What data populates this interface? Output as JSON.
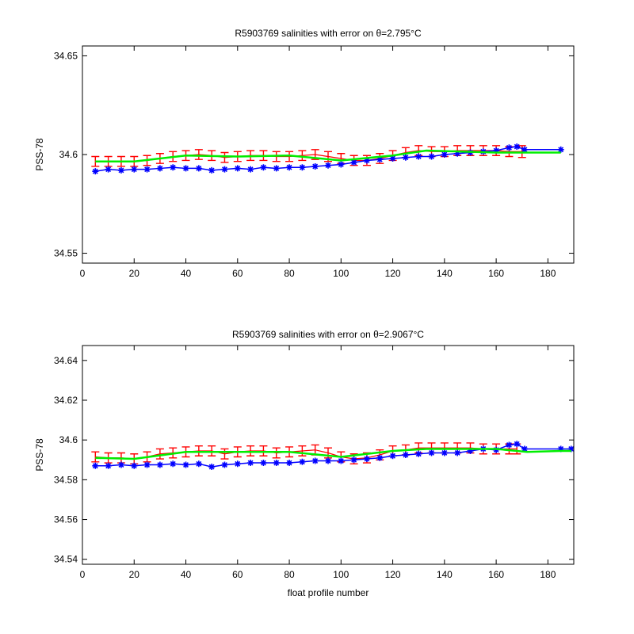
{
  "chart_data": [
    {
      "type": "line",
      "title": "R5903769 salinities with error on θ=2.795",
      "title_suffix": "°C",
      "xlabel": "",
      "ylabel": "PSS-78",
      "xlim": [
        0,
        190
      ],
      "ylim": [
        34.545,
        34.655
      ],
      "xticks": [
        0,
        20,
        40,
        60,
        80,
        100,
        120,
        140,
        160,
        180
      ],
      "yticks": [
        34.55,
        34.6,
        34.65
      ],
      "ytick_labels": [
        "34.55",
        "34.6",
        "34.65"
      ],
      "grid": false,
      "colors": {
        "mapped": "#ff0000",
        "float": "#0000ff",
        "calibrated": "#00ee00"
      },
      "series": [
        {
          "role": "mapped",
          "style": "errorbar",
          "x": [
            5,
            10,
            15,
            20,
            25,
            30,
            35,
            40,
            45,
            50,
            55,
            60,
            65,
            70,
            75,
            80,
            85,
            90,
            95,
            100,
            105,
            110,
            115,
            120,
            125,
            130,
            135,
            140,
            145,
            150,
            155,
            160,
            165,
            170
          ],
          "values": [
            34.5965,
            34.5965,
            34.5965,
            34.5965,
            34.597,
            34.598,
            34.599,
            34.5995,
            34.6,
            34.5995,
            34.5985,
            34.599,
            34.5995,
            34.5995,
            34.599,
            34.599,
            34.5995,
            34.6,
            34.599,
            34.598,
            34.597,
            34.597,
            34.598,
            34.5995,
            34.601,
            34.602,
            34.6015,
            34.6015,
            34.602,
            34.602,
            34.602,
            34.602,
            34.6015,
            34.6015
          ],
          "error": [
            0.0025,
            0.0025,
            0.0025,
            0.0025,
            0.0025,
            0.0025,
            0.0025,
            0.0025,
            0.0025,
            0.0025,
            0.0025,
            0.0025,
            0.0025,
            0.0025,
            0.0025,
            0.0025,
            0.0025,
            0.0025,
            0.0025,
            0.0025,
            0.0025,
            0.0025,
            0.0025,
            0.0025,
            0.0025,
            0.0025,
            0.0025,
            0.0025,
            0.0025,
            0.0025,
            0.0025,
            0.0025,
            0.0025,
            0.003
          ]
        },
        {
          "role": "float",
          "style": "stars",
          "x": [
            5,
            10,
            15,
            20,
            25,
            30,
            35,
            40,
            45,
            50,
            55,
            60,
            65,
            70,
            75,
            80,
            85,
            90,
            95,
            100,
            105,
            110,
            115,
            120,
            125,
            130,
            135,
            140,
            145,
            150,
            155,
            160,
            165,
            168,
            171,
            185
          ],
          "values": [
            34.5915,
            34.5925,
            34.592,
            34.5925,
            34.5925,
            34.593,
            34.5935,
            34.593,
            34.593,
            34.592,
            34.5925,
            34.593,
            34.5925,
            34.5935,
            34.593,
            34.5935,
            34.5935,
            34.594,
            34.5945,
            34.595,
            34.596,
            34.597,
            34.5975,
            34.598,
            34.5985,
            34.599,
            34.599,
            34.6,
            34.6005,
            34.601,
            34.6015,
            34.602,
            34.6035,
            34.604,
            34.6025,
            34.6025
          ]
        },
        {
          "role": "calibrated",
          "style": "line",
          "x": [
            5,
            20,
            40,
            60,
            80,
            100,
            120,
            133,
            160,
            172,
            185
          ],
          "values": [
            34.5965,
            34.5965,
            34.5995,
            34.599,
            34.5995,
            34.597,
            34.5995,
            34.602,
            34.601,
            34.601,
            34.601
          ]
        }
      ]
    },
    {
      "type": "line",
      "title": "R5903769 salinities with error on θ=2.9067",
      "title_suffix": "°C",
      "xlabel": "float profile number",
      "ylabel": "PSS-78",
      "xlim": [
        0,
        190
      ],
      "ylim": [
        34.5375,
        34.6475
      ],
      "xticks": [
        0,
        20,
        40,
        60,
        80,
        100,
        120,
        140,
        160,
        180
      ],
      "yticks": [
        34.54,
        34.56,
        34.58,
        34.6,
        34.62,
        34.64
      ],
      "ytick_labels": [
        "34.54",
        "34.56",
        "34.58",
        "34.6",
        "34.62",
        "34.64"
      ],
      "grid": false,
      "colors": {
        "mapped": "#ff0000",
        "float": "#0000ff",
        "calibrated": "#00ee00"
      },
      "series": [
        {
          "role": "mapped",
          "style": "errorbar",
          "x": [
            5,
            10,
            15,
            20,
            25,
            30,
            35,
            40,
            45,
            50,
            55,
            60,
            65,
            70,
            75,
            80,
            85,
            90,
            95,
            100,
            105,
            110,
            115,
            120,
            125,
            130,
            135,
            140,
            145,
            150,
            155,
            160,
            165,
            168
          ],
          "values": [
            34.5915,
            34.591,
            34.591,
            34.5905,
            34.5915,
            34.593,
            34.5935,
            34.594,
            34.5945,
            34.5945,
            34.593,
            34.594,
            34.5945,
            34.5945,
            34.5935,
            34.594,
            34.5945,
            34.595,
            34.5935,
            34.5915,
            34.5905,
            34.591,
            34.5925,
            34.5945,
            34.595,
            34.596,
            34.596,
            34.596,
            34.596,
            34.596,
            34.5955,
            34.5955,
            34.5955,
            34.5955
          ],
          "error": [
            0.0025,
            0.0025,
            0.0025,
            0.0025,
            0.0025,
            0.0025,
            0.0025,
            0.0025,
            0.0025,
            0.0025,
            0.0025,
            0.0025,
            0.0025,
            0.0025,
            0.0025,
            0.0025,
            0.0025,
            0.0025,
            0.0025,
            0.0025,
            0.0025,
            0.0025,
            0.0025,
            0.0025,
            0.0025,
            0.0025,
            0.0025,
            0.0025,
            0.0025,
            0.0025,
            0.0025,
            0.0025,
            0.0025,
            0.0025
          ]
        },
        {
          "role": "float",
          "style": "stars",
          "x": [
            5,
            10,
            15,
            20,
            25,
            30,
            35,
            40,
            45,
            50,
            55,
            60,
            65,
            70,
            75,
            80,
            85,
            90,
            95,
            100,
            105,
            110,
            115,
            120,
            125,
            130,
            135,
            140,
            145,
            150,
            155,
            160,
            165,
            168,
            171,
            185,
            189
          ],
          "values": [
            34.587,
            34.587,
            34.5875,
            34.587,
            34.5875,
            34.5875,
            34.588,
            34.5875,
            34.588,
            34.5865,
            34.5875,
            34.588,
            34.5885,
            34.5885,
            34.5885,
            34.5885,
            34.589,
            34.5895,
            34.5895,
            34.5895,
            34.59,
            34.5905,
            34.591,
            34.592,
            34.5925,
            34.593,
            34.5935,
            34.5935,
            34.5935,
            34.5945,
            34.5955,
            34.595,
            34.5975,
            34.598,
            34.5955,
            34.5955,
            34.5955
          ]
        },
        {
          "role": "calibrated",
          "style": "line",
          "x": [
            5,
            20,
            40,
            60,
            80,
            100,
            120,
            133,
            160,
            172,
            185,
            189
          ],
          "values": [
            34.591,
            34.5905,
            34.594,
            34.594,
            34.594,
            34.5915,
            34.5945,
            34.5955,
            34.5955,
            34.594,
            34.5945,
            34.5945
          ]
        }
      ]
    }
  ]
}
